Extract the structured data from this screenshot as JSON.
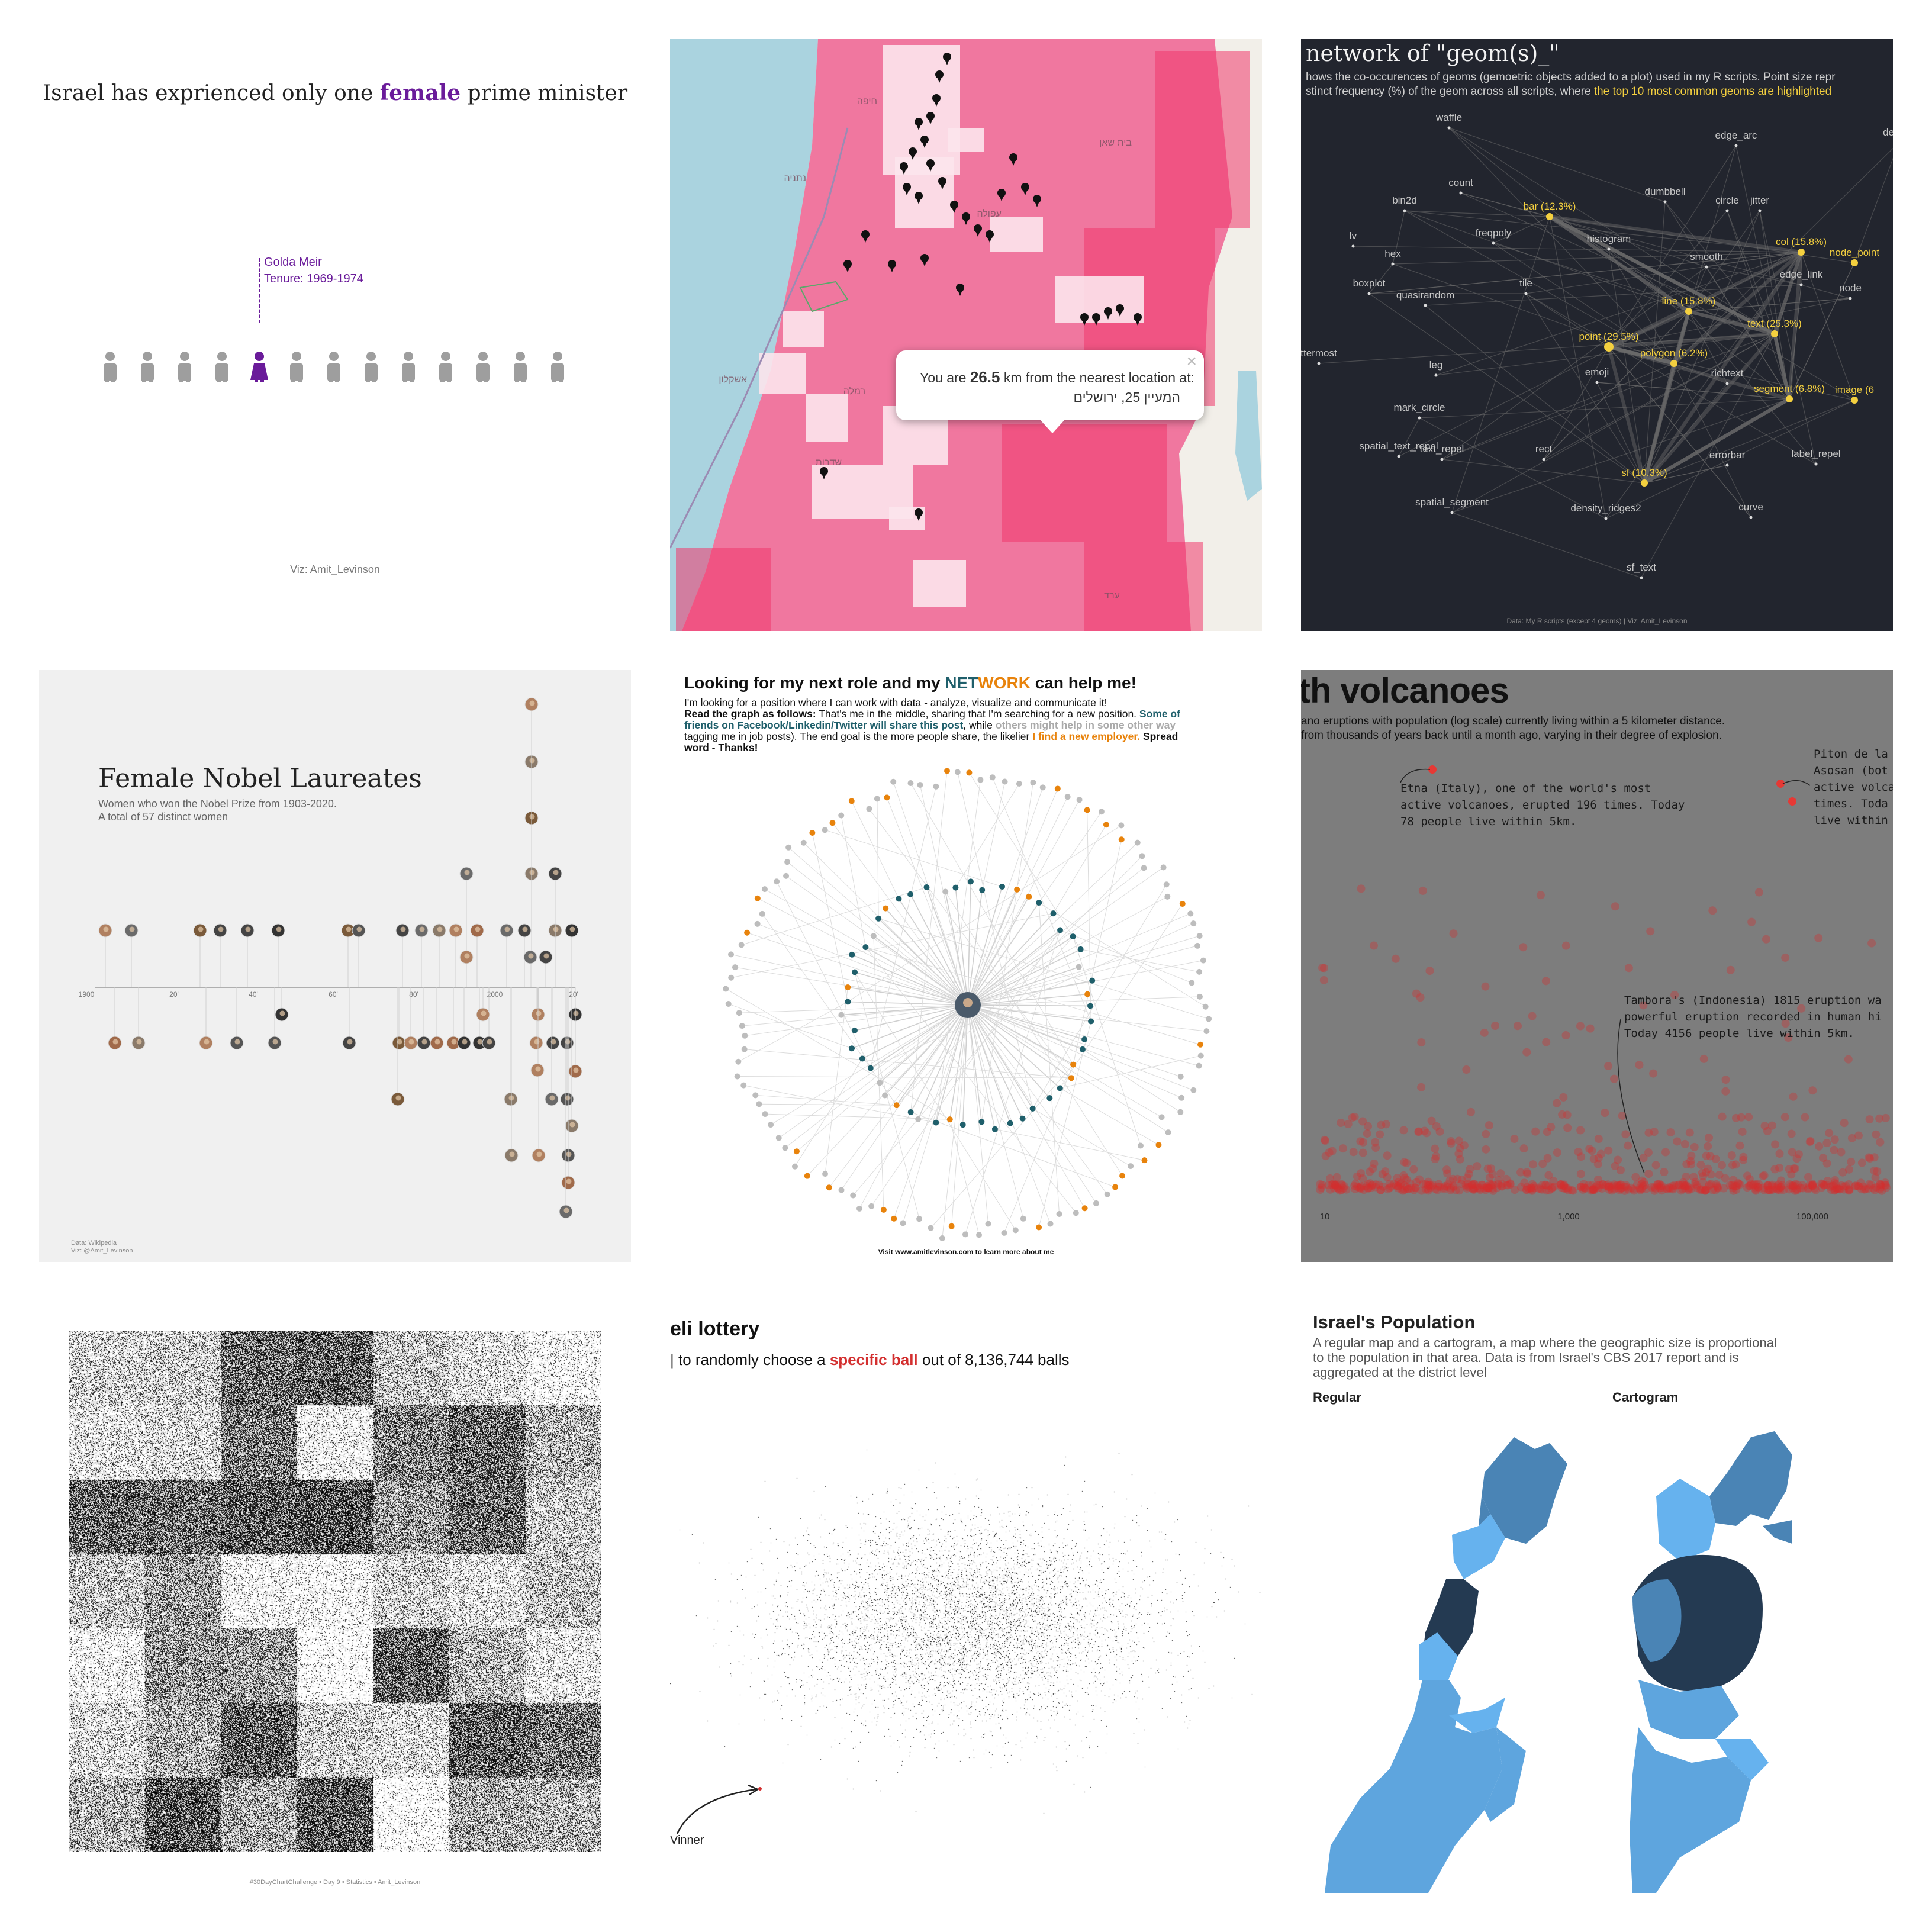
{
  "tiles": {
    "pm": {
      "title_pre": "Israel has exprienced only one ",
      "title_highlight": "female",
      "title_post": " prime minister",
      "annotation_name": "Golda Meir",
      "annotation_tenure": "Tenure: 1969-1974",
      "credit": "Viz: Amit_Levinson",
      "icon_count": 13,
      "highlight_index": 4,
      "colors": {
        "highlight": "#6a1b9a",
        "figure": "#9e9e9e",
        "title": "#222222"
      }
    },
    "map": {
      "popup_pre": "You are ",
      "popup_distance": "26.5",
      "popup_post": " km from the nearest location at:",
      "popup_address": "המעיין 25, ירושלים",
      "close_glyph": "×",
      "place_labels": [
        "ערד",
        "שדרות",
        "אשקלון",
        "רמלה",
        "נתניה",
        "חיפה",
        "עפולה",
        "בית שאן"
      ],
      "colors": {
        "sea": "#aad3df",
        "pink": "#f06292",
        "deep": "#f0386b",
        "light": "#fce4ec"
      }
    },
    "geom": {
      "title": "network of \"geom(s)_\"",
      "subtitle_1": "hows the co-occurences of geoms (gemoetric objects added to a plot) used in my R scripts. Point size repr",
      "subtitle_2_pre": "stinct frequency (%) of the geom across all scripts, where ",
      "subtitle_2_hl": "the top 10 most common geoms are highlighted",
      "caption": "Data: My R scripts (except 4 geoms) | Viz: Amit_Levinson",
      "colors": {
        "bg": "#22252e",
        "text": "#c8c8c8",
        "highlight": "#f4d03f",
        "edge": "#6b6b6b"
      },
      "nodes": [
        {
          "label": "waffle",
          "hl": false
        },
        {
          "label": "edge_arc",
          "hl": false
        },
        {
          "label": "density",
          "hl": false
        },
        {
          "label": "count",
          "hl": false
        },
        {
          "label": "bin2d",
          "hl": false
        },
        {
          "label": "dumbbell",
          "hl": false
        },
        {
          "label": "circle",
          "hl": false
        },
        {
          "label": "jitter",
          "hl": false
        },
        {
          "label": "bar (12.3%)",
          "hl": true
        },
        {
          "label": "lv",
          "hl": false
        },
        {
          "label": "freqpoly",
          "hl": false
        },
        {
          "label": "histogram",
          "hl": false
        },
        {
          "label": "col (15.8%)",
          "hl": true
        },
        {
          "label": "node_point",
          "hl": true
        },
        {
          "label": "hex",
          "hl": false
        },
        {
          "label": "smooth",
          "hl": false
        },
        {
          "label": "edge_link",
          "hl": false
        },
        {
          "label": "boxplot",
          "hl": false
        },
        {
          "label": "tile",
          "hl": false
        },
        {
          "label": "node",
          "hl": false
        },
        {
          "label": "quasirandom",
          "hl": false
        },
        {
          "label": "line (15.8%)",
          "hl": true
        },
        {
          "label": "point (29.5%)",
          "hl": true
        },
        {
          "label": "text (25.3%)",
          "hl": true
        },
        {
          "label": "polygon (6.2%)",
          "hl": true
        },
        {
          "label": "ttermost",
          "hl": false
        },
        {
          "label": "leg",
          "hl": false
        },
        {
          "label": "emoji",
          "hl": false
        },
        {
          "label": "richtext",
          "hl": false
        },
        {
          "label": "segment (6.8%)",
          "hl": true
        },
        {
          "label": "image (6",
          "hl": true
        },
        {
          "label": "mark_circle",
          "hl": false
        },
        {
          "label": "spatial_text_repel",
          "hl": false
        },
        {
          "label": "text_repel",
          "hl": false
        },
        {
          "label": "rect",
          "hl": false
        },
        {
          "label": "errorbar",
          "hl": false
        },
        {
          "label": "label_repel",
          "hl": false
        },
        {
          "label": "sf (10.3%)",
          "hl": true
        },
        {
          "label": "spatial_segment",
          "hl": false
        },
        {
          "label": "density_ridges2",
          "hl": false
        },
        {
          "label": "curve",
          "hl": false
        },
        {
          "label": "sf_text",
          "hl": false
        }
      ]
    },
    "nobel": {
      "title": "Female Nobel Laureates",
      "subtitle_1": "Women who won the Nobel Prize from 1903-2020.",
      "subtitle_2": "A total of 57 distinct women",
      "axis_ticks": [
        "1900",
        "20'",
        "40'",
        "60'",
        "80'",
        "2000",
        "20'"
      ],
      "caption_1": "Data: Wikipedia",
      "caption_2": "Viz: @Amit_Levinson",
      "colors": {
        "bg": "#f0f0f0",
        "title": "#222222",
        "sub": "#666666"
      }
    },
    "network": {
      "title_pre": "Looking for my next role and my ",
      "title_net": "NET",
      "title_work": "WORK",
      "title_post": " can help me!",
      "line_1": "I'm looking for a position where I can work with data - analyze, visualize and communicate it!",
      "line_2_bold": "Read the graph as follows:",
      "line_2_rest": " That's me in the middle, sharing that I'm searching for a new position. ",
      "line_2_teal": "Some of",
      "line_3_teal": "friends on Facebook/Linkedin/Twitter will share this post",
      "line_3_mid": ", while ",
      "line_3_grey": "others might help in some other way",
      "line_4_pre": "tagging me in job posts). The end goal is the more people share, the likelier ",
      "line_4_orange": "I find a new employer.",
      "line_4_post": "  Spread",
      "line_5": "word - Thanks!",
      "footer": "Visit www.amitlevinson.com to learn more about me",
      "colors": {
        "teal": "#1f5f6b",
        "orange": "#e8830c",
        "grey": "#bdbdbd"
      }
    },
    "volcano": {
      "title": "th volcanoes",
      "subtitle_1": "ano eruptions with population (log scale) currently living within a 5 kilometer distance.",
      "subtitle_2": "from thousands of years back until a month ago, varying in their degree of explosion.",
      "etna_1": "Etna (Italy), one of the world's most",
      "etna_2": "active volcanoes, erupted 196 times. Today",
      "etna_3": "78 people live within 5km.",
      "piton_1": "Piton de la",
      "piton_2": "Asosan (bot",
      "piton_3": "active volca",
      "piton_4": "times. Toda",
      "piton_5": "live within",
      "tambora_1": "Tambora's (Indonesia) 1815 eruption wa",
      "tambora_2": "powerful eruption recorded in human hi",
      "tambora_3": "Today 4156 people live within 5km.",
      "x_ticks": [
        "10",
        "1,000",
        "100,000"
      ],
      "colors": {
        "bg": "#7d7d7d",
        "dot": "#d32f2f"
      }
    },
    "noise": {
      "caption": "#30DayChartChallenge • Day 9 • Statistics • Amit_Levinson"
    },
    "lottery": {
      "title": "eli lottery",
      "subtitle_pre": "to randomly  choose a ",
      "subtitle_hl": "specific ball",
      "subtitle_post": " out of 8,136,744 balls",
      "winner": "Vinner",
      "colors": {
        "highlight": "#d32f2f"
      }
    },
    "population": {
      "title": "Israel's Population",
      "desc_1": "A regular map and a cartogram, a map where the geographic size is proportional",
      "desc_2": "to the population in that area. Data is from Israel's CBS 2017 report and is",
      "desc_3": "aggregated at the district level",
      "label_regular": "Regular",
      "label_cartogram": "Cartogram",
      "colors": {
        "dark": "#243a52",
        "mid": "#4a84b5",
        "light": "#5ea5de",
        "pale": "#66b2ee"
      }
    }
  }
}
